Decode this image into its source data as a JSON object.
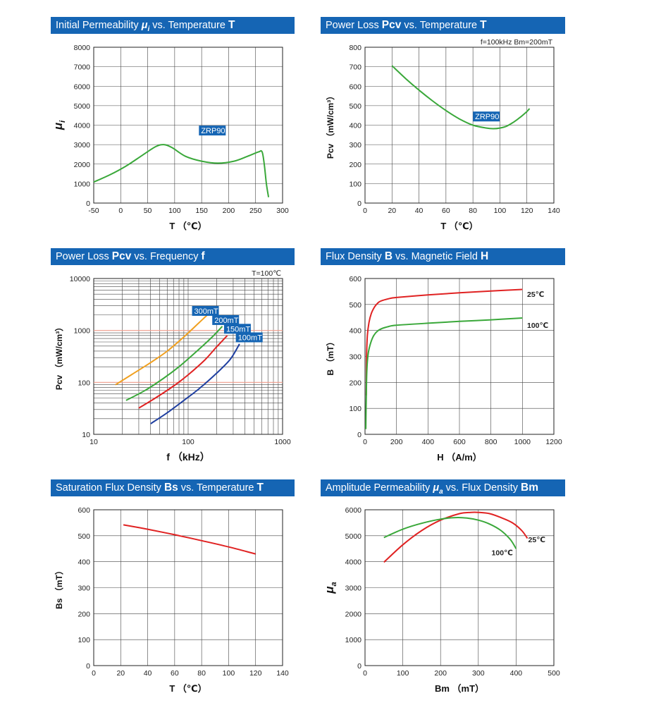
{
  "colors": {
    "header_bg": "#1565b4",
    "grid": "#444444",
    "green": "#3aa83a",
    "red": "#e02222",
    "orange": "#f0a020",
    "blue": "#1f3fa0",
    "ref_line": "#f4a090",
    "label_bg": "#1565b4"
  },
  "chart_data": [
    {
      "id": "mu_vs_T",
      "type": "line",
      "title_parts": [
        "Initial Permeability ",
        "μ",
        "i",
        " vs. Temperature ",
        "T"
      ],
      "xlabel": "T （℃）",
      "ylabel_symbol": "μ",
      "ylabel_sub": "i",
      "xlim": [
        -50,
        300
      ],
      "ylim": [
        0,
        8000
      ],
      "xticks": [
        -50,
        0,
        50,
        100,
        150,
        200,
        250,
        300
      ],
      "yticks": [
        0,
        1000,
        2000,
        3000,
        4000,
        5000,
        6000,
        7000,
        8000
      ],
      "annotation": "ZRP90",
      "series": [
        {
          "color": "green",
          "x": [
            -50,
            -20,
            10,
            40,
            65,
            80,
            95,
            120,
            150,
            180,
            210,
            235,
            255,
            262,
            266,
            270,
            274
          ],
          "y": [
            1080,
            1450,
            1900,
            2450,
            2900,
            3000,
            2850,
            2400,
            2150,
            2050,
            2150,
            2400,
            2620,
            2630,
            2000,
            1000,
            300
          ]
        }
      ]
    },
    {
      "id": "pcv_vs_T",
      "type": "line",
      "title_parts": [
        "Power Loss ",
        "Pcv",
        " vs. Temperature ",
        "T"
      ],
      "xlabel": "T （℃）",
      "ylabel": "Pcv （mW/cm³）",
      "condition": "f=100kHz    Bm=200mT",
      "xlim": [
        0,
        140
      ],
      "ylim": [
        0,
        800
      ],
      "xticks": [
        0,
        20,
        40,
        60,
        80,
        100,
        120,
        140
      ],
      "yticks": [
        0,
        100,
        200,
        300,
        400,
        500,
        600,
        700,
        800
      ],
      "annotation": "ZRP90",
      "series": [
        {
          "color": "green",
          "x": [
            20,
            30,
            40,
            50,
            60,
            70,
            80,
            90,
            95,
            100,
            105,
            110,
            115,
            120,
            122
          ],
          "y": [
            705,
            640,
            580,
            525,
            475,
            432,
            400,
            385,
            382,
            385,
            395,
            415,
            440,
            470,
            485
          ]
        }
      ]
    },
    {
      "id": "pcv_vs_f",
      "type": "line",
      "log_x": true,
      "log_y": true,
      "title_parts": [
        "Power Loss ",
        "Pcv",
        " vs. Frequency ",
        "f"
      ],
      "xlabel": "f （kHz）",
      "ylabel": "Pcv （mW/cm³）",
      "condition": "T=100℃",
      "xlim": [
        10,
        1000
      ],
      "ylim": [
        10,
        10000
      ],
      "xticks": [
        10,
        100,
        1000
      ],
      "yticks": [
        10,
        100,
        1000,
        10000
      ],
      "ref_lines_y": [
        100,
        1000
      ],
      "series": [
        {
          "name": "300mT",
          "color": "orange",
          "x": [
            17,
            25,
            40,
            60,
            90,
            130,
            160
          ],
          "y": [
            90,
            140,
            240,
            400,
            750,
            1400,
            2000
          ]
        },
        {
          "name": "200mT",
          "color": "green",
          "x": [
            22,
            35,
            55,
            80,
            120,
            180,
            230
          ],
          "y": [
            45,
            70,
            120,
            200,
            380,
            750,
            1200
          ]
        },
        {
          "name": "150mT",
          "color": "red",
          "x": [
            30,
            45,
            70,
            100,
            150,
            200,
            260
          ],
          "y": [
            32,
            50,
            85,
            140,
            270,
            480,
            800
          ]
        },
        {
          "name": "100mT",
          "color": "blue",
          "x": [
            40,
            60,
            90,
            130,
            200,
            280,
            350
          ],
          "y": [
            16,
            26,
            45,
            75,
            150,
            280,
            550
          ]
        }
      ]
    },
    {
      "id": "B_vs_H",
      "type": "line",
      "title_parts": [
        "Flux Density ",
        "B",
        " vs. Magnetic Field ",
        "H"
      ],
      "xlabel": "H （A/m）",
      "ylabel": "B （mT）",
      "xlim": [
        0,
        1200
      ],
      "ylim": [
        0,
        600
      ],
      "xticks": [
        0,
        200,
        400,
        600,
        800,
        1000,
        1200
      ],
      "yticks": [
        0,
        100,
        200,
        300,
        400,
        500,
        600
      ],
      "series": [
        {
          "name": "25℃",
          "color": "red",
          "x": [
            8,
            10,
            15,
            25,
            40,
            60,
            80,
            100,
            150,
            200,
            400,
            600,
            800,
            1000
          ],
          "y": [
            150,
            300,
            380,
            430,
            465,
            490,
            505,
            513,
            522,
            527,
            537,
            545,
            552,
            558
          ]
        },
        {
          "name": "100℃",
          "color": "green",
          "x": [
            5,
            8,
            12,
            20,
            35,
            55,
            80,
            110,
            150,
            200,
            400,
            600,
            800,
            1000
          ],
          "y": [
            20,
            150,
            250,
            310,
            350,
            380,
            398,
            408,
            415,
            420,
            428,
            435,
            441,
            448
          ]
        }
      ]
    },
    {
      "id": "Bs_vs_T",
      "type": "line",
      "title_parts": [
        "Saturation Flux Density ",
        "Bs",
        " vs. Temperature ",
        "T"
      ],
      "xlabel": "T （℃）",
      "ylabel": "Bs （mT）",
      "xlim": [
        0,
        140
      ],
      "ylim": [
        0,
        600
      ],
      "xticks": [
        0,
        20,
        40,
        60,
        80,
        100,
        120,
        140
      ],
      "yticks": [
        0,
        100,
        200,
        300,
        400,
        500,
        600
      ],
      "series": [
        {
          "color": "red",
          "x": [
            22,
            40,
            60,
            80,
            100,
            120
          ],
          "y": [
            542,
            525,
            504,
            481,
            457,
            430
          ]
        }
      ]
    },
    {
      "id": "mua_vs_Bm",
      "type": "line",
      "title_parts": [
        "Amplitude Permeability ",
        "μ",
        "a",
        " vs. Flux Density ",
        "Bm"
      ],
      "xlabel": "Bm （mT）",
      "ylabel_symbol": "μ",
      "ylabel_sub": "a",
      "xlim": [
        0,
        500
      ],
      "ylim": [
        0,
        6000
      ],
      "xticks": [
        0,
        100,
        200,
        300,
        400,
        500
      ],
      "yticks": [
        0,
        1000,
        2000,
        3000,
        4000,
        5000,
        6000
      ],
      "series": [
        {
          "name": "25℃",
          "color": "red",
          "x": [
            50,
            100,
            150,
            200,
            250,
            280,
            300,
            330,
            360,
            390,
            415,
            430
          ],
          "y": [
            3980,
            4650,
            5200,
            5600,
            5850,
            5900,
            5900,
            5850,
            5700,
            5500,
            5200,
            4900
          ]
        },
        {
          "name": "100℃",
          "color": "green",
          "x": [
            50,
            100,
            150,
            200,
            240,
            270,
            300,
            330,
            360,
            385,
            400
          ],
          "y": [
            4930,
            5250,
            5480,
            5640,
            5700,
            5680,
            5600,
            5450,
            5200,
            4850,
            4500
          ]
        }
      ]
    }
  ]
}
